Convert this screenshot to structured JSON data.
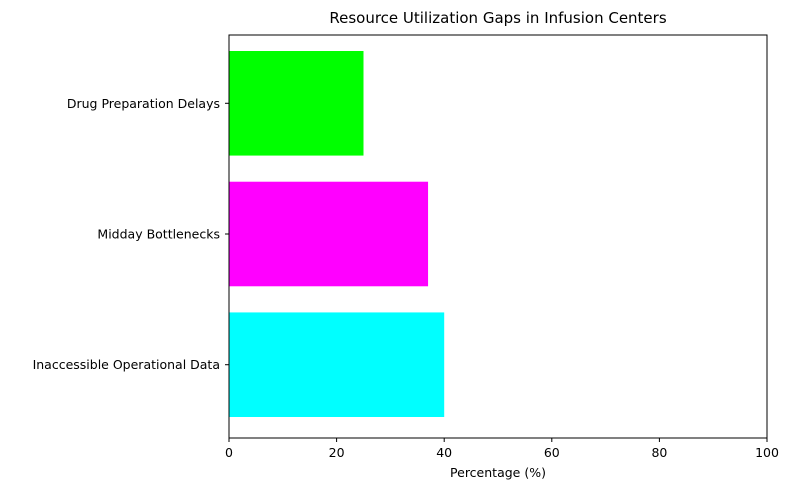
{
  "chart_data": {
    "type": "bar",
    "orientation": "horizontal",
    "title": "Resource Utilization Gaps in Infusion Centers",
    "xlabel": "Percentage (%)",
    "ylabel": "",
    "xlim": [
      0,
      100
    ],
    "xticks": [
      0,
      20,
      40,
      60,
      80,
      100
    ],
    "categories": [
      "Inaccessible Operational Data",
      "Midday Bottlenecks",
      "Drug Preparation Delays"
    ],
    "values": [
      40,
      37,
      25
    ],
    "colors": [
      "#00ffff",
      "#ff00ff",
      "#00ff00"
    ],
    "grid": false,
    "legend": "none"
  }
}
